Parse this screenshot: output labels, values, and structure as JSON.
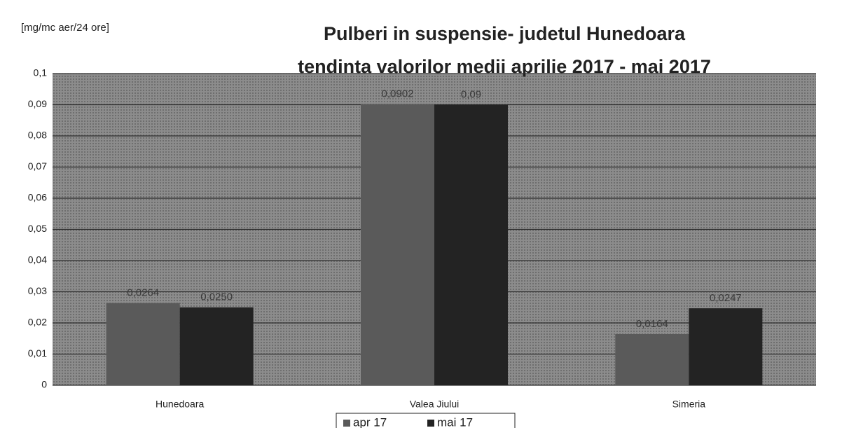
{
  "chart_data": {
    "type": "bar",
    "title": "Pulberi in suspensie- judetul Hunedoara",
    "subtitle": "tendinta valorilor medii aprilie 2017 - mai 2017",
    "y_axis_label": "[mg/mc aer/24 ore]",
    "categories": [
      "Hunedoara",
      "Valea Jiului",
      "Simeria"
    ],
    "series": [
      {
        "name": "apr 17",
        "color": "#5a5a5a",
        "values": [
          0.0264,
          0.0902,
          0.0164
        ],
        "value_labels": [
          "0,0264",
          "0,0902",
          "0,0164"
        ]
      },
      {
        "name": "mai 17",
        "color": "#232323",
        "values": [
          0.025,
          0.09,
          0.0247
        ],
        "value_labels": [
          "0,0250",
          "0,09",
          "0,0247"
        ]
      }
    ],
    "ylim": [
      0,
      0.1
    ],
    "yticks": [
      0,
      {
        "value": 0.01,
        "label": "0,01"
      },
      {
        "value": 0.02,
        "label": "0,02"
      },
      {
        "value": 0.03,
        "label": "0,03"
      },
      {
        "value": 0.04,
        "label": "0,04"
      },
      {
        "value": 0.05,
        "label": "0,05"
      },
      {
        "value": 0.06,
        "label": "0,06"
      },
      {
        "value": 0.07,
        "label": "0,07"
      },
      {
        "value": 0.08,
        "label": "0,08"
      },
      {
        "value": 0.09,
        "label": "0,09"
      },
      {
        "value": 0.1,
        "label": "0,1"
      }
    ],
    "grid": true,
    "legend": "bottom"
  }
}
